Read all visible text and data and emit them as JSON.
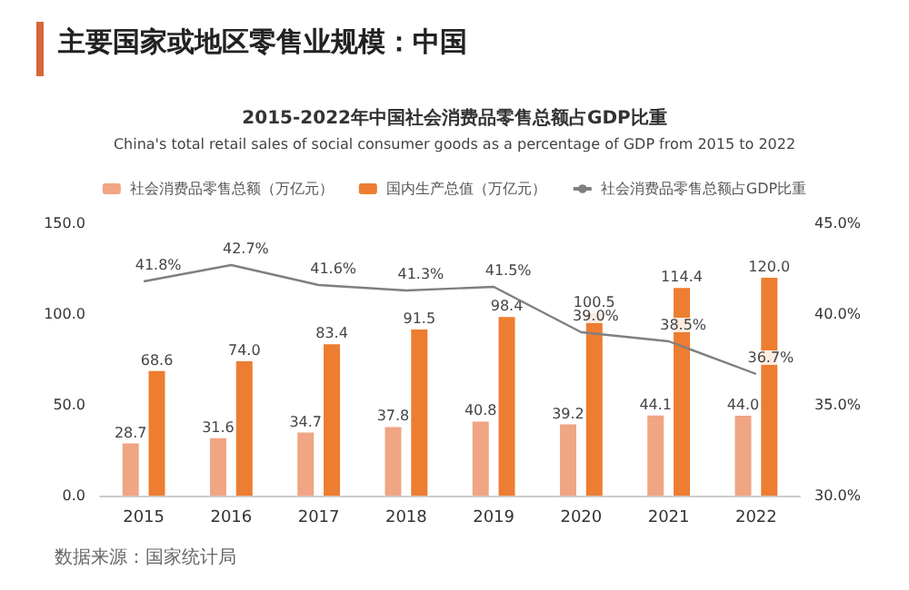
{
  "chart_data": {
    "type": "bar",
    "title": "主要国家或地区零售业规模：中国",
    "subtitle": "2015-2022年中国社会消费品零售总额占GDP比重",
    "annotations": [
      "China's total retail sales of social consumer goods as a percentage of GDP from 2015 to 2022",
      "数据来源：国家统计局"
    ],
    "categories": [
      "2015",
      "2016",
      "2017",
      "2018",
      "2019",
      "2020",
      "2021",
      "2022"
    ],
    "series": [
      {
        "name": "社会消费品零售总额（万亿元）",
        "color": "#f0a583",
        "values": [
          28.7,
          31.6,
          34.7,
          37.8,
          40.8,
          39.2,
          44.1,
          44.0
        ],
        "value_labels": [
          "28.7",
          "31.6",
          "34.7",
          "37.8",
          "40.8",
          "39.2",
          "44.1",
          "44.0"
        ]
      },
      {
        "name": "国内生产总值（万亿元）",
        "color": "#ed7d31",
        "values": [
          68.6,
          74.0,
          83.4,
          91.5,
          98.4,
          100.5,
          114.4,
          120.0
        ],
        "value_labels": [
          "68.6",
          "74.0",
          "83.4",
          "91.5",
          "98.4",
          "100.5",
          "114.4",
          "120.0"
        ]
      },
      {
        "name": "社会消费品零售总额占GDP比重",
        "type": "line",
        "axis": "y2",
        "color": "#7f7f7f",
        "values": [
          41.8,
          42.7,
          41.6,
          41.3,
          41.5,
          39.0,
          38.5,
          36.7
        ],
        "value_labels": [
          "41.8%",
          "42.7%",
          "41.6%",
          "41.3%",
          "41.5%",
          "39.0%",
          "38.5%",
          "36.7%"
        ]
      }
    ],
    "ylim": [
      0,
      150
    ],
    "yticks": [
      {
        "value": 0,
        "label": "0.0"
      },
      {
        "value": 50,
        "label": "50.0"
      },
      {
        "value": 100,
        "label": "100.0"
      },
      {
        "value": 150,
        "label": "150.0"
      }
    ],
    "y2lim": [
      30,
      45
    ],
    "y2ticks": [
      {
        "value": 30,
        "label": "30.0%"
      },
      {
        "value": 35,
        "label": "35.0%"
      },
      {
        "value": 40,
        "label": "40.0%"
      },
      {
        "value": 45,
        "label": "45.0%"
      }
    ],
    "legend": "top",
    "marker": "none",
    "line_style": "solid"
  }
}
